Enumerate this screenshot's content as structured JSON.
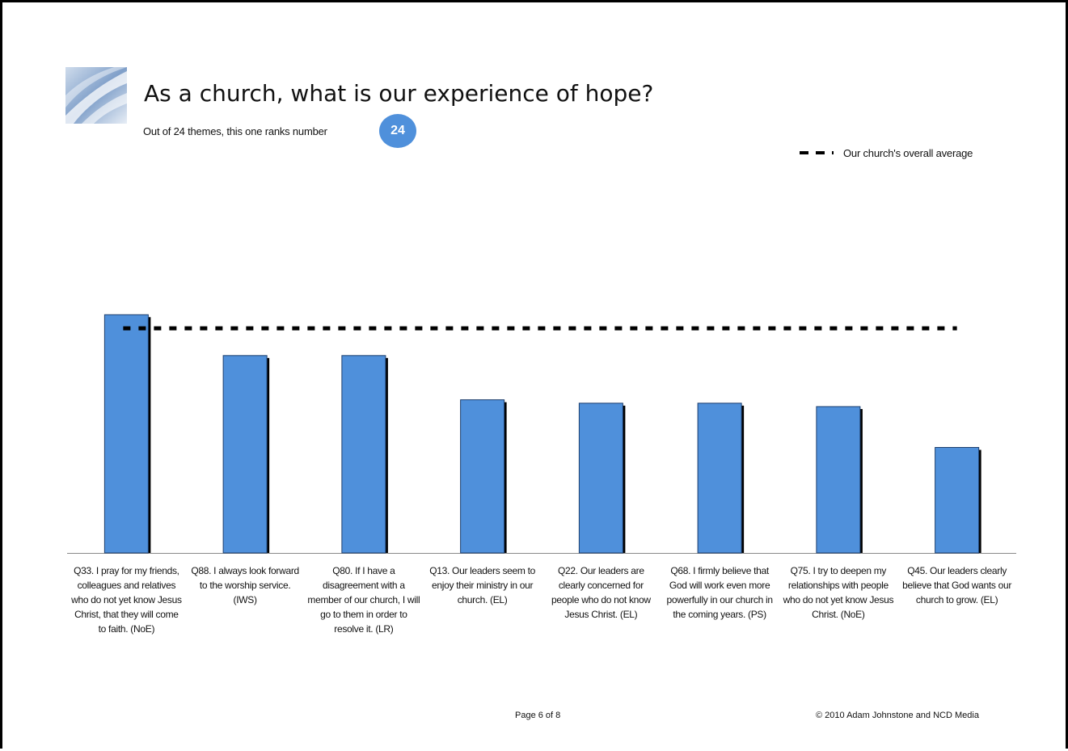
{
  "header": {
    "title": "As a church, what is our experience of hope?",
    "subtitle": "Out of 24 themes, this one ranks number",
    "rank": "24"
  },
  "colors": {
    "bar": "#4f90db",
    "bar_shadow": "#000000",
    "average_line": "#000000",
    "rank_badge": "#4f90db"
  },
  "chart_data": {
    "type": "bar",
    "title": "",
    "xlabel": "",
    "ylabel": "",
    "ylim": [
      0,
      100
    ],
    "categories": [
      "Q33. I pray for my friends, colleagues and relatives who do not yet know Jesus Christ, that they will come to faith. (NoE)",
      "Q88. I always look forward to the worship service. (IWS)",
      "Q80. If I have a disagreement with a member of our church, I will go to them in order to resolve it. (LR)",
      "Q13. Our leaders seem to enjoy their ministry in our church. (EL)",
      "Q22. Our leaders are clearly concerned for people who do not know Jesus Christ. (EL)",
      "Q68. I firmly believe that God will work even more powerfully in our church in the coming years. (PS)",
      "Q75. I try to deepen my relationships with people who do not yet know Jesus Christ. (NoE)",
      "Q45. Our leaders clearly believe that God wants our church to grow. (EL)"
    ],
    "values": [
      70,
      58,
      58,
      45,
      44,
      44,
      43,
      31
    ],
    "average": 66,
    "legend": {
      "entries": [
        "Our church's overall average"
      ],
      "placement": "top-right"
    },
    "grid": false
  },
  "footer": {
    "page": "Page 6 of 8",
    "copyright": "© 2010 Adam Johnstone and NCD Media"
  }
}
